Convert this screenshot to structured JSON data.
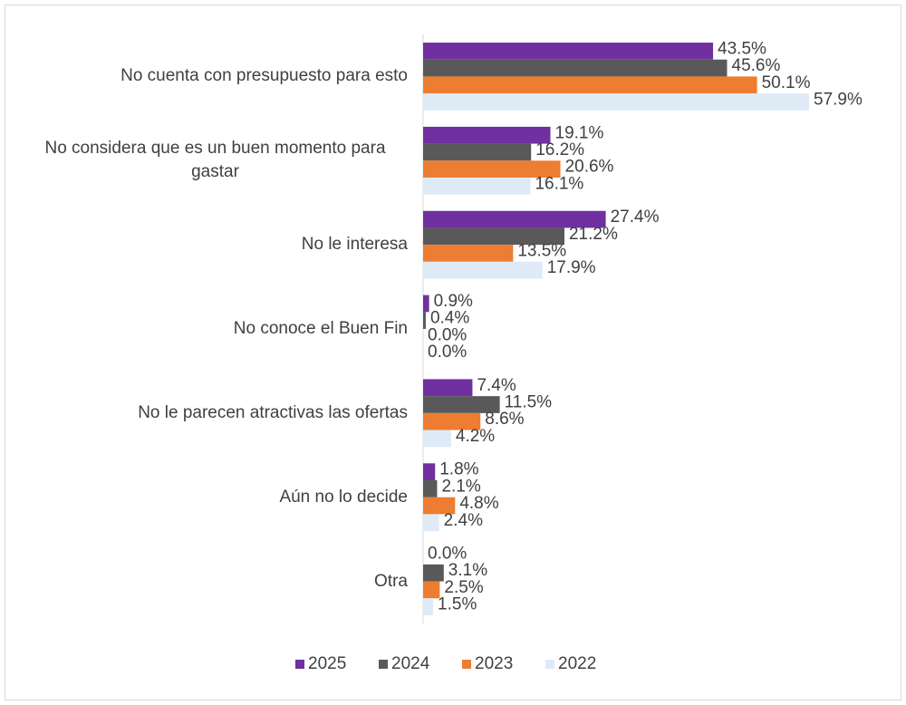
{
  "chart_data": {
    "type": "bar",
    "orientation": "horizontal",
    "categories": [
      "No cuenta con presupuesto para esto",
      "No considera que es un buen momento para gastar",
      "No le interesa",
      "No conoce el Buen Fin",
      "No le parecen atractivas las ofertas",
      "Aún no lo decide",
      "Otra"
    ],
    "series": [
      {
        "name": "2025",
        "color": "#7030a0",
        "values": [
          43.5,
          19.1,
          27.4,
          0.9,
          7.4,
          1.8,
          0.0
        ],
        "value_labels": [
          "43.5%",
          "19.1%",
          "27.4%",
          "0.9%",
          "7.4%",
          "1.8%",
          "0.0%"
        ]
      },
      {
        "name": "2024",
        "color": "#595959",
        "values": [
          45.6,
          16.2,
          21.2,
          0.4,
          11.5,
          2.1,
          3.1
        ],
        "value_labels": [
          "45.6%",
          "16.2%",
          "21.2%",
          "0.4%",
          "11.5%",
          "2.1%",
          "3.1%"
        ]
      },
      {
        "name": "2023",
        "color": "#ed7d31",
        "values": [
          50.1,
          20.6,
          13.5,
          0.0,
          8.6,
          4.8,
          2.5
        ],
        "value_labels": [
          "50.1%",
          "20.6%",
          "13.5%",
          "0.0%",
          "8.6%",
          "4.8%",
          "2.5%"
        ]
      },
      {
        "name": "2022",
        "color": "#deebf7",
        "values": [
          57.9,
          16.1,
          17.9,
          0.0,
          4.2,
          2.4,
          1.5
        ],
        "value_labels": [
          "57.9%",
          "16.1%",
          "17.9%",
          "0.0%",
          "4.2%",
          "2.4%",
          "1.5%"
        ]
      }
    ],
    "legend": "bottom"
  }
}
